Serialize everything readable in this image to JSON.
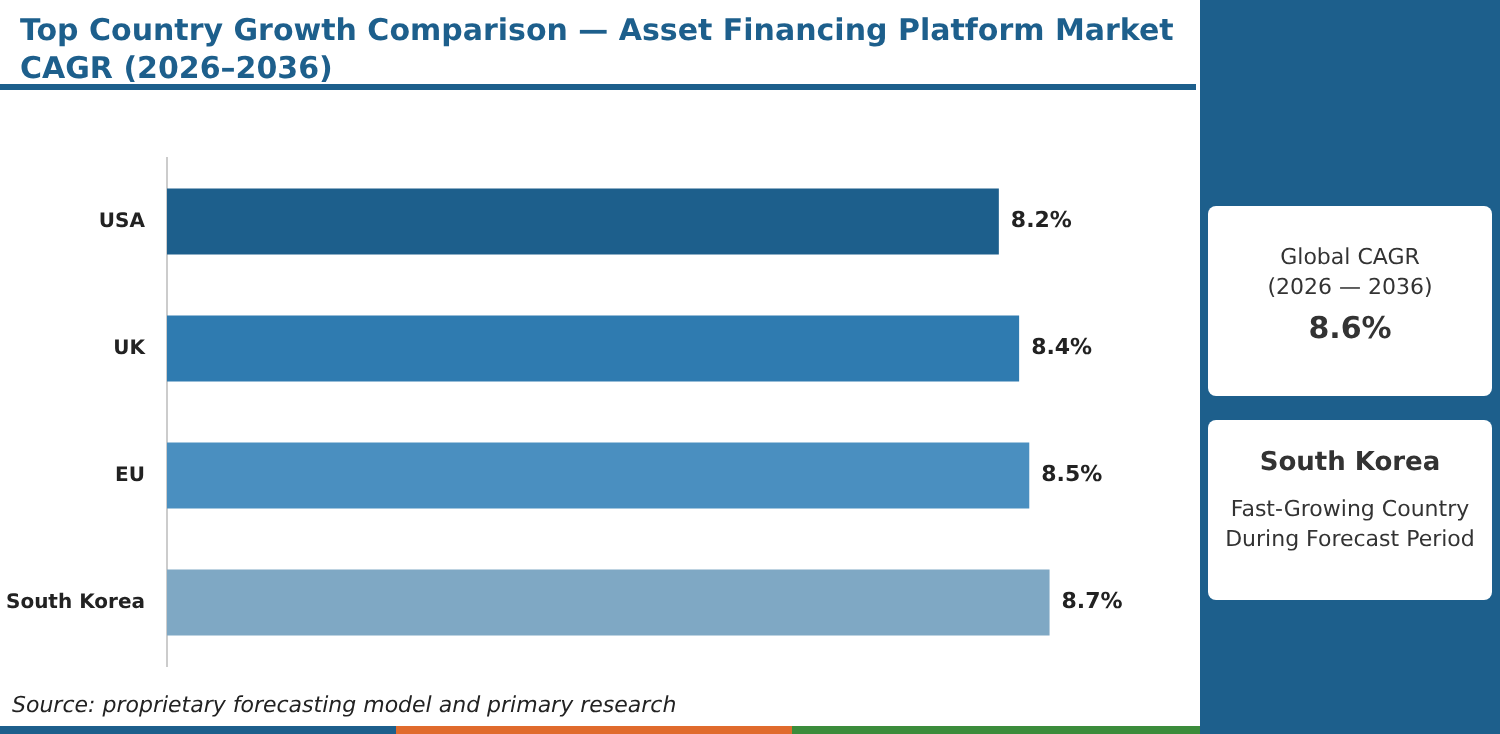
{
  "chart_data": {
    "type": "bar",
    "orientation": "horizontal",
    "title": "Top Country Growth Comparison — Asset Financing Platform Market CAGR (2026–2036)",
    "categories": [
      "USA",
      "UK",
      "EU",
      "South Korea"
    ],
    "values": [
      8.2,
      8.4,
      8.5,
      8.7
    ],
    "colors": [
      "#1d5f8c",
      "#2f7bb0",
      "#4a8fc0",
      "#7fa8c4"
    ],
    "value_labels": [
      "8.2%",
      "8.4%",
      "8.5%",
      "8.7%"
    ],
    "tick_labels": "y",
    "grid": false,
    "legend": false,
    "annotations": [
      "Global CAGR\n(2026 — 2036)",
      "8.6%",
      "South Korea",
      "Fast-Growing Country\nDuring Forecast Period",
      "Source: proprietary forecasting model and primary research"
    ]
  }
}
